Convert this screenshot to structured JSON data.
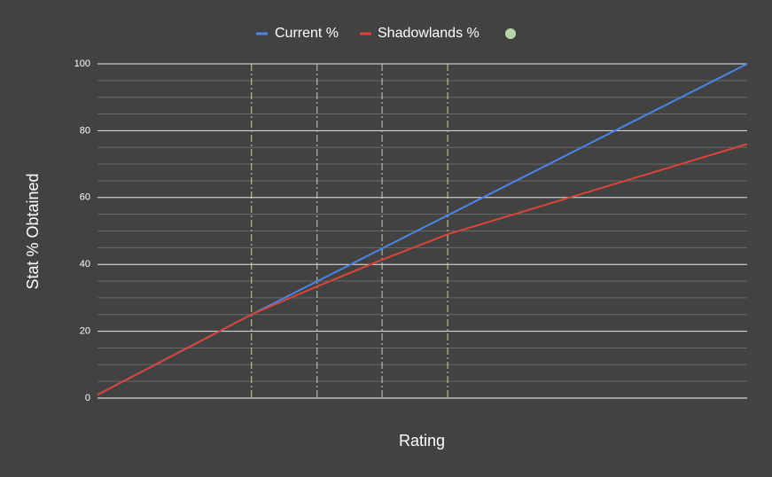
{
  "chart_data": {
    "type": "line",
    "xlabel": "Rating",
    "ylabel": "Stat % Obtained",
    "xlim": [
      0,
      100
    ],
    "ylim": [
      0,
      100
    ],
    "yticks": [
      0,
      20,
      40,
      60,
      80,
      100
    ],
    "yminor": [
      5,
      10,
      15,
      25,
      30,
      35,
      45,
      50,
      55,
      65,
      70,
      75,
      85,
      90,
      95
    ],
    "grid": true,
    "legend": "top",
    "vlines": [
      23.7,
      33.8,
      43.8,
      53.9
    ],
    "vline_color": "#c9d3a0",
    "series": [
      {
        "name": "Current %",
        "color": "#4a86e8",
        "x": [
          0,
          23.7,
          100
        ],
        "values": [
          1,
          25,
          100
        ]
      },
      {
        "name": "Shadowlands %",
        "color": "#dc4438",
        "x": [
          0,
          23.7,
          33.8,
          43.8,
          53.9,
          100
        ],
        "values": [
          1,
          25,
          33.4,
          41.4,
          49,
          76
        ]
      }
    ]
  }
}
